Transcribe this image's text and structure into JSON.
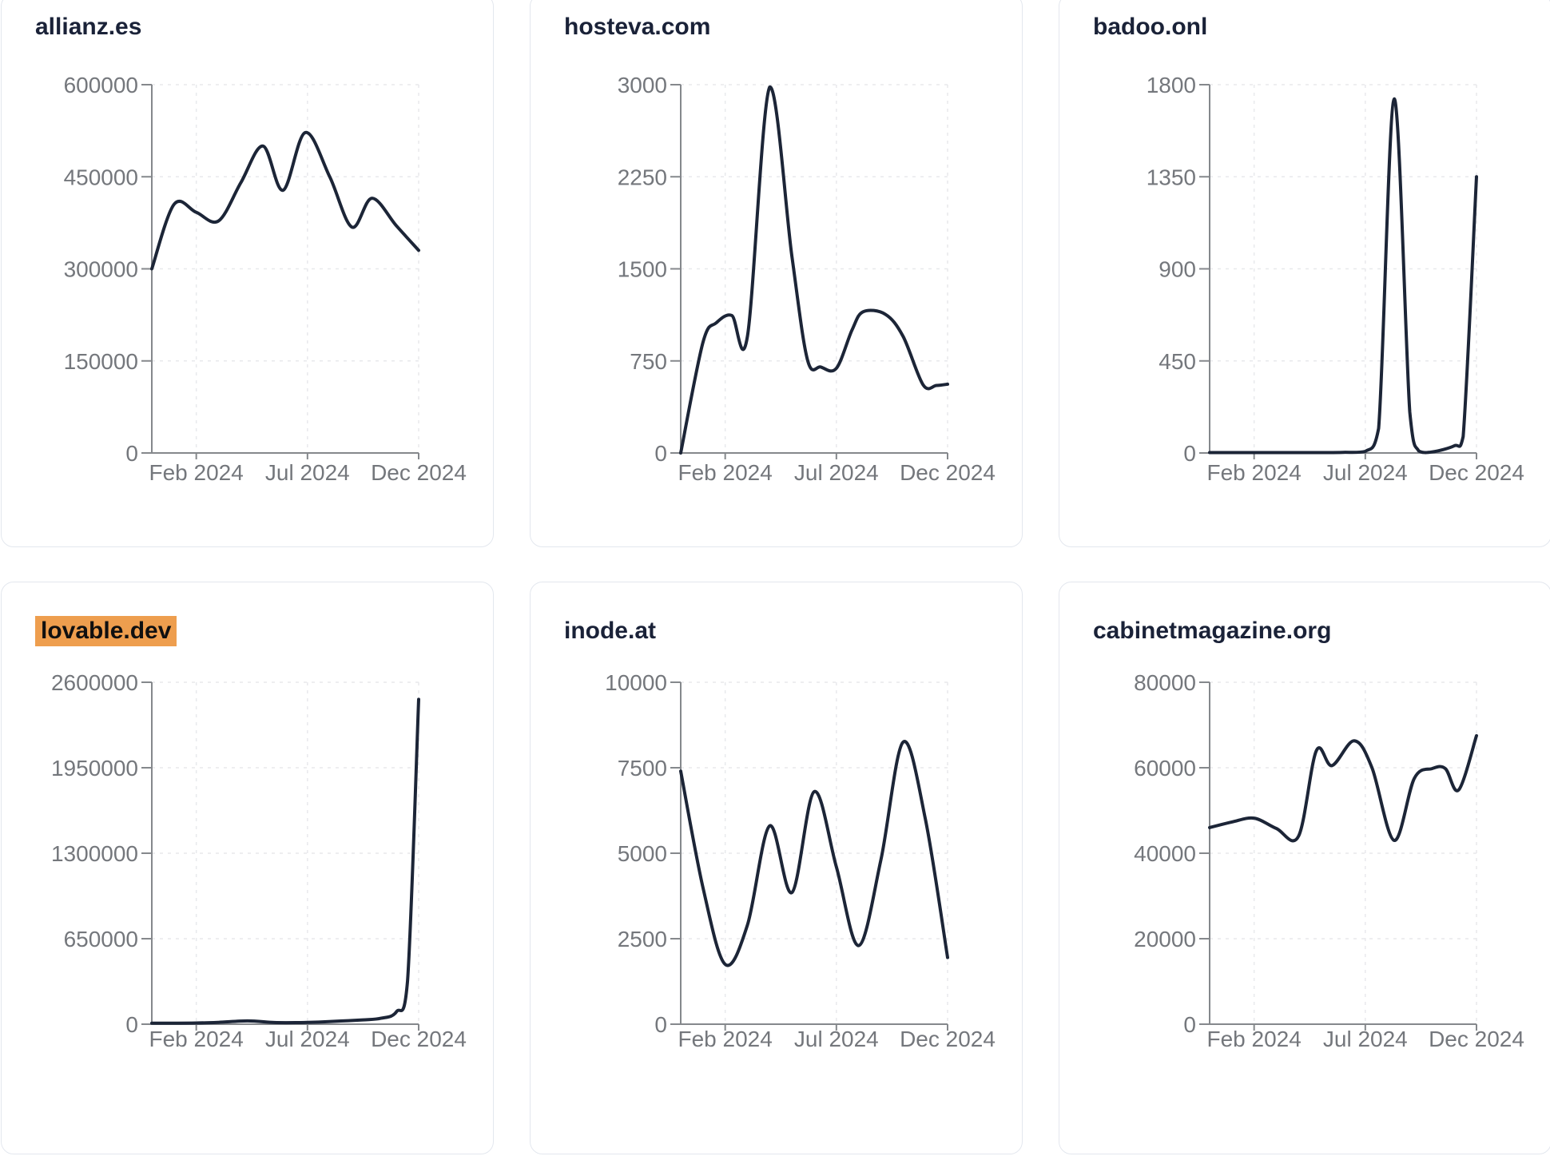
{
  "colors": {
    "line": "#1c2537",
    "title_text": "#1a2238",
    "axis": "#85888c",
    "tick_label": "#74777c",
    "grid": "#e8e9ec",
    "card_border": "#e3e7ee",
    "card_background": "#ffffff",
    "page_background": "#ffffff",
    "highlight": "#ee9e4e"
  },
  "chart_data": [
    {
      "type": "line",
      "title": "allianz.es",
      "highlighted": false,
      "ylim": [
        0,
        600000
      ],
      "y_ticks": [
        "0",
        "150000",
        "300000",
        "450000",
        "600000"
      ],
      "x_ticks": [
        "Feb 2024",
        "Jul 2024",
        "Dec 2024"
      ],
      "x_scale": {
        "range": [
          0,
          12
        ],
        "tick_positions": [
          2,
          7,
          12
        ]
      },
      "x": [
        0,
        1,
        2,
        3,
        4,
        5,
        5.9,
        6.9,
        8,
        9,
        9.9,
        11,
        12
      ],
      "values": [
        300000,
        405000,
        392000,
        378000,
        440000,
        500000,
        428000,
        522000,
        450000,
        368000,
        415000,
        370000,
        330000
      ]
    },
    {
      "type": "line",
      "title": "hosteva.com",
      "highlighted": false,
      "ylim": [
        0,
        3000
      ],
      "y_ticks": [
        "0",
        "750",
        "1500",
        "2250",
        "3000"
      ],
      "x_ticks": [
        "Feb 2024",
        "Jul 2024",
        "Dec 2024"
      ],
      "x_scale": {
        "range": [
          0,
          12
        ],
        "tick_positions": [
          2,
          7,
          12
        ]
      },
      "x": [
        0,
        1,
        1.6,
        2.3,
        3,
        4,
        5,
        5.7,
        6.3,
        7,
        7.7,
        8.2,
        9.2,
        10,
        10.9,
        11.5,
        12
      ],
      "values": [
        0,
        900,
        1060,
        1120,
        950,
        2980,
        1600,
        760,
        700,
        690,
        1000,
        1150,
        1130,
        950,
        555,
        550,
        560
      ]
    },
    {
      "type": "line",
      "title": "badoo.onl",
      "highlighted": false,
      "ylim": [
        0,
        1800
      ],
      "y_ticks": [
        "0",
        "450",
        "900",
        "1350",
        "1800"
      ],
      "x_ticks": [
        "Feb 2024",
        "Jul 2024",
        "Dec 2024"
      ],
      "x_scale": {
        "range": [
          0,
          12
        ],
        "tick_positions": [
          2,
          7,
          12
        ]
      },
      "x": [
        0,
        1,
        2,
        3,
        4,
        5,
        6,
        7,
        7.6,
        8.3,
        9,
        9.4,
        10,
        11,
        11.4,
        12
      ],
      "values": [
        2,
        2,
        2,
        2,
        2,
        2,
        3,
        8,
        120,
        1730,
        200,
        10,
        5,
        35,
        80,
        1350
      ]
    },
    {
      "type": "line",
      "title": "lovable.dev",
      "highlighted": true,
      "ylim": [
        0,
        2600000
      ],
      "y_ticks": [
        "0",
        "650000",
        "1300000",
        "1950000",
        "2600000"
      ],
      "x_ticks": [
        "Feb 2024",
        "Jul 2024",
        "Dec 2024"
      ],
      "x_scale": {
        "range": [
          0,
          12
        ],
        "tick_positions": [
          2,
          7,
          12
        ]
      },
      "x": [
        0,
        1,
        2,
        3,
        4.3,
        5.5,
        6.5,
        7.5,
        8.5,
        9.5,
        10.3,
        11,
        11.5,
        12
      ],
      "values": [
        8000,
        8000,
        9000,
        14000,
        25000,
        13000,
        12000,
        16000,
        24000,
        33000,
        45000,
        95000,
        330000,
        2470000
      ]
    },
    {
      "type": "line",
      "title": "inode.at",
      "highlighted": false,
      "ylim": [
        0,
        10000
      ],
      "y_ticks": [
        "0",
        "2500",
        "5000",
        "7500",
        "10000"
      ],
      "x_ticks": [
        "Feb 2024",
        "Jul 2024",
        "Dec 2024"
      ],
      "x_scale": {
        "range": [
          0,
          12
        ],
        "tick_positions": [
          2,
          7,
          12
        ]
      },
      "x": [
        0,
        1,
        2,
        3,
        4,
        5,
        6,
        7,
        8,
        9,
        10,
        11,
        12
      ],
      "values": [
        7400,
        4000,
        1750,
        2900,
        5800,
        3850,
        6800,
        4600,
        2300,
        4800,
        8250,
        6000,
        1950
      ]
    },
    {
      "type": "line",
      "title": "cabinetmagazine.org",
      "highlighted": false,
      "ylim": [
        0,
        80000
      ],
      "y_ticks": [
        "0",
        "20000",
        "40000",
        "60000",
        "80000"
      ],
      "x_ticks": [
        "Feb 2024",
        "Jul 2024",
        "Dec 2024"
      ],
      "x_scale": {
        "range": [
          0,
          12
        ],
        "tick_positions": [
          2,
          7,
          12
        ]
      },
      "x": [
        0,
        1,
        2,
        3,
        4,
        4.8,
        5.5,
        6.5,
        7.3,
        8.3,
        9.2,
        10,
        10.6,
        11.2,
        12
      ],
      "values": [
        46000,
        47300,
        48200,
        45800,
        44000,
        64000,
        60500,
        66300,
        60000,
        43000,
        57500,
        59800,
        59800,
        54800,
        67500
      ]
    }
  ]
}
